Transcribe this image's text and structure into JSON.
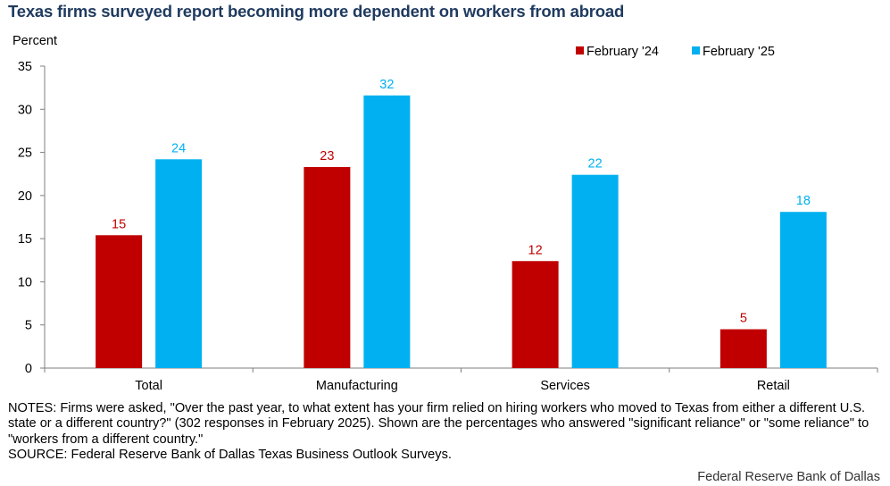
{
  "title": "Texas firms surveyed report becoming more dependent on workers from abroad",
  "chart_data": {
    "type": "bar",
    "title": "Texas firms surveyed report becoming more dependent on workers from abroad",
    "ylabel": "Percent",
    "xlabel": "",
    "ylim": [
      0,
      35
    ],
    "yticks": [
      0,
      5,
      10,
      15,
      20,
      25,
      30,
      35
    ],
    "grid": false,
    "legend_position": "top-right",
    "categories": [
      "Total",
      "Manufacturing",
      "Services",
      "Retail"
    ],
    "series": [
      {
        "name": "February '24",
        "color": "#c00000",
        "values": [
          15.4,
          23.3,
          12.4,
          4.5
        ],
        "labels": [
          "15",
          "23",
          "12",
          "5"
        ]
      },
      {
        "name": "February '25",
        "color": "#00b0f0",
        "values": [
          24.2,
          31.6,
          22.4,
          18.1
        ],
        "labels": [
          "24",
          "32",
          "22",
          "18"
        ]
      }
    ]
  },
  "notes": "NOTES: Firms were asked, \"Over the past year, to what extent has your firm relied on hiring workers who moved to Texas from either a different U.S. state or a different country?\" (302 responses in February 2025). Shown are the percentages who answered \"significant reliance\" or \"some reliance\" to \"workers from a different country.\"",
  "source": "SOURCE: Federal Reserve Bank of Dallas Texas Business Outlook Surveys.",
  "credit": "Federal Reserve Bank of Dallas"
}
